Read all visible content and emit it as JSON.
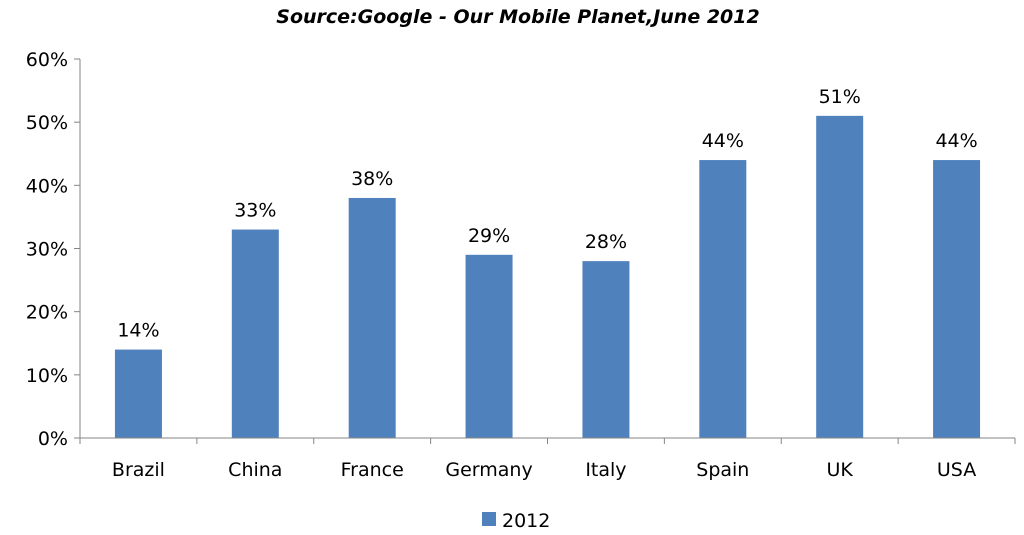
{
  "chart_data": {
    "type": "bar",
    "title": "Source:Google  - Our Mobile Planet,June 2012",
    "categories": [
      "Brazil",
      "China",
      "France",
      "Germany",
      "Italy",
      "Spain",
      "UK",
      "USA"
    ],
    "series": [
      {
        "name": "2012",
        "values": [
          14,
          33,
          38,
          29,
          28,
          44,
          51,
          44
        ],
        "data_labels": [
          "14%",
          "33%",
          "38%",
          "29%",
          "28%",
          "44%",
          "51%",
          "44%"
        ]
      }
    ],
    "ylim": [
      0,
      60
    ],
    "yticks": [
      "0%",
      "10%",
      "20%",
      "30%",
      "40%",
      "50%",
      "60%"
    ],
    "grid": false,
    "legend": "bottom",
    "colors": {
      "bar": "#4F81BD",
      "axis": "#868686"
    }
  }
}
